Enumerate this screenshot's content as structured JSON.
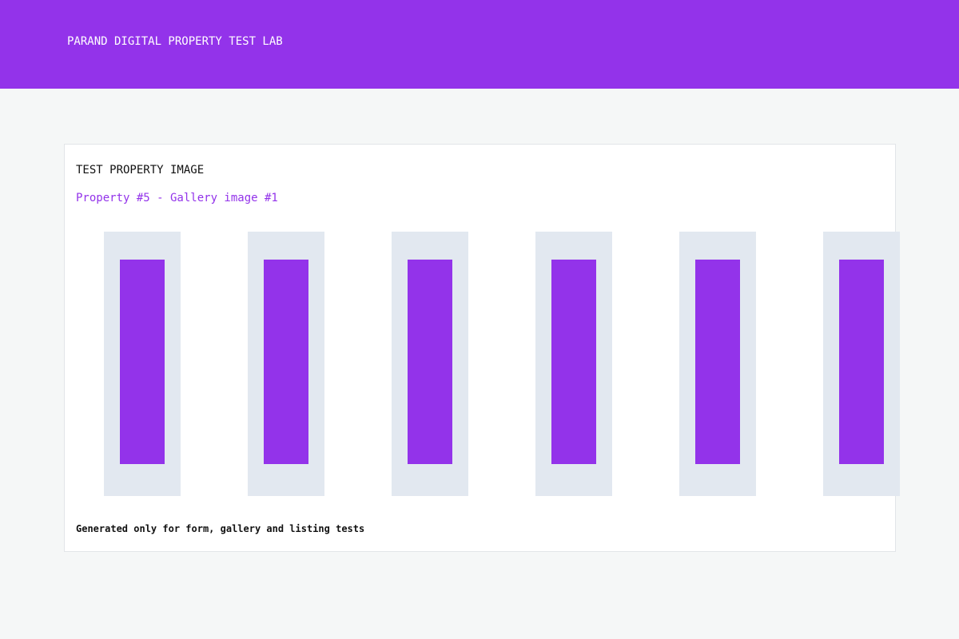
{
  "header": {
    "title": "PARAND DIGITAL PROPERTY TEST LAB"
  },
  "card": {
    "heading": "TEST PROPERTY IMAGE",
    "subtitle": "Property #5 - Gallery image #1",
    "footer": "Generated only for form, gallery and listing tests"
  }
}
